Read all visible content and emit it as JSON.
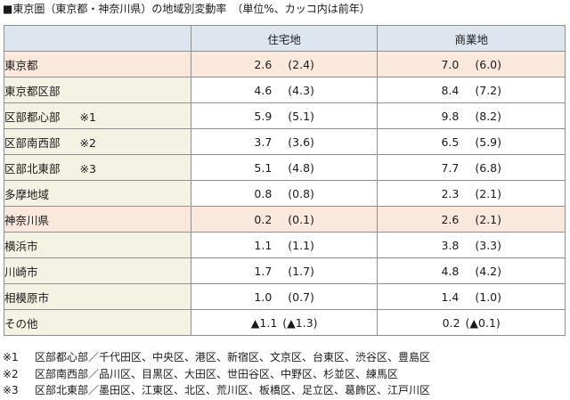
{
  "title": "■東京圏（東京都・神奈川県）の地域別変動率　（単位%、カッコ内は前年）",
  "table": {
    "header": {
      "area": "",
      "residential": "住宅地",
      "commercial": "商業地"
    },
    "rows": [
      {
        "name": "東京都",
        "mark": "",
        "res": "2.6",
        "res_prev": "(2.4)",
        "com": "7.0",
        "com_prev": "(6.0)"
      },
      {
        "name": "東京都区部",
        "mark": "",
        "res": "4.6",
        "res_prev": "(4.3)",
        "com": "8.4",
        "com_prev": "(7.2)"
      },
      {
        "name": "区部都心部",
        "mark": "※1",
        "res": "5.9",
        "res_prev": "(5.1)",
        "com": "9.8",
        "com_prev": "(8.2)"
      },
      {
        "name": "区部南西部",
        "mark": "※2",
        "res": "3.7",
        "res_prev": "(3.6)",
        "com": "6.5",
        "com_prev": "(5.9)"
      },
      {
        "name": "区部北東部",
        "mark": "※3",
        "res": "5.1",
        "res_prev": "(4.8)",
        "com": "7.7",
        "com_prev": "(6.8)"
      },
      {
        "name": "多摩地域",
        "mark": "",
        "res": "0.8",
        "res_prev": "(0.8)",
        "com": "2.3",
        "com_prev": "(2.1)"
      },
      {
        "name": "神奈川県",
        "mark": "",
        "res": "0.2",
        "res_prev": "(0.1)",
        "com": "2.6",
        "com_prev": "(2.1)"
      },
      {
        "name": "横浜市",
        "mark": "",
        "res": "1.1",
        "res_prev": "(1.1)",
        "com": "3.8",
        "com_prev": "(3.3)"
      },
      {
        "name": "川崎市",
        "mark": "",
        "res": "1.7",
        "res_prev": "(1.7)",
        "com": "4.8",
        "com_prev": "(4.2)"
      },
      {
        "name": "相模原市",
        "mark": "",
        "res": "1.0",
        "res_prev": "(0.7)",
        "com": "1.4",
        "com_prev": "(1.0)"
      },
      {
        "name": "その他",
        "mark": "",
        "res": "▲1.1",
        "res_prev": "(▲1.3)",
        "com": "0.2",
        "com_prev": "(▲0.1)"
      }
    ]
  },
  "notes": [
    {
      "num": "※1",
      "text": "区部都心部／千代田区、中央区、港区、新宿区、文京区、台東区、渋谷区、豊島区"
    },
    {
      "num": "※2",
      "text": "区部南西部／品川区、目黒区、大田区、世田谷区、中野区、杉並区、練馬区"
    },
    {
      "num": "※3",
      "text": "区部北東部／墨田区、江東区、北区、荒川区、板橋区、足立区、葛飾区、江戸川区"
    }
  ],
  "colors": {
    "header_bg": "#dde5ef",
    "area_col_bg": "#f4f2e3",
    "prefecture_row_bg": "#fae8dd",
    "border": "#8f8f8f"
  }
}
